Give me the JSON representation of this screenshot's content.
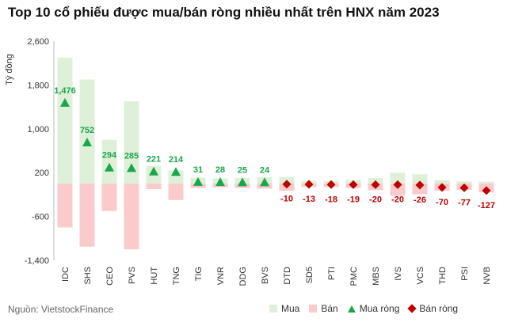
{
  "title": "Top 10 cổ phiếu được mua/bán ròng nhiều nhất trên HNX năm 2023",
  "source": "Nguồn: VietstockFinance",
  "legend": {
    "buy": "Mua",
    "sell": "Bán",
    "net_buy": "Mua ròng",
    "net_sell": "Bán ròng"
  },
  "colors": {
    "buy": "#dff0d8",
    "sell": "#fbcaca",
    "net_buy": "#1aa64b",
    "net_sell": "#c00000"
  },
  "chart_data": {
    "type": "bar",
    "title": "Top 10 cổ phiếu được mua/bán ròng nhiều nhất trên HNX năm 2023",
    "ylabel": "Tỷ đồng",
    "ylim": [
      -1400,
      2600
    ],
    "yticks": [
      -1400,
      -600,
      200,
      1000,
      1800,
      2600
    ],
    "ytick_labels": [
      "-1,400",
      "-600",
      "200",
      "1,000",
      "1,800",
      "2,600"
    ],
    "grid": false,
    "legend_position": "bottom-right",
    "categories": [
      "IDC",
      "SHS",
      "CEO",
      "PVS",
      "HUT",
      "TNG",
      "TIG",
      "VNR",
      "DDG",
      "BVS",
      "DTD",
      "SD5",
      "PTI",
      "PMC",
      "MBS",
      "IVS",
      "VCS",
      "THD",
      "PSI",
      "NVB"
    ],
    "series": [
      {
        "name": "Mua",
        "values": [
          2300,
          1900,
          800,
          1500,
          320,
          240,
          110,
          95,
          105,
          115,
          120,
          50,
          45,
          65,
          100,
          200,
          170,
          60,
          40,
          35
        ]
      },
      {
        "name": "Bán",
        "values": [
          -800,
          -1150,
          -500,
          -1200,
          -100,
          -300,
          -80,
          -70,
          -80,
          -90,
          -130,
          -60,
          -60,
          -80,
          -120,
          -220,
          -195,
          -130,
          -115,
          -160
        ]
      },
      {
        "name": "Mua ròng",
        "values": [
          1476,
          752,
          294,
          285,
          221,
          214,
          31,
          28,
          25,
          24,
          null,
          null,
          null,
          null,
          null,
          null,
          null,
          null,
          null,
          null
        ]
      },
      {
        "name": "Bán ròng",
        "values": [
          null,
          null,
          null,
          null,
          null,
          null,
          null,
          null,
          null,
          null,
          -10,
          -13,
          -18,
          -19,
          -20,
          -20,
          -26,
          -70,
          -77,
          -127
        ]
      }
    ],
    "data_labels": [
      "1,476",
      "752",
      "294",
      "285",
      "221",
      "214",
      "31",
      "28",
      "25",
      "24",
      "-10",
      "-13",
      "-18",
      "-19",
      "-20",
      "-20",
      "-26",
      "-70",
      "-77",
      "-127"
    ]
  }
}
